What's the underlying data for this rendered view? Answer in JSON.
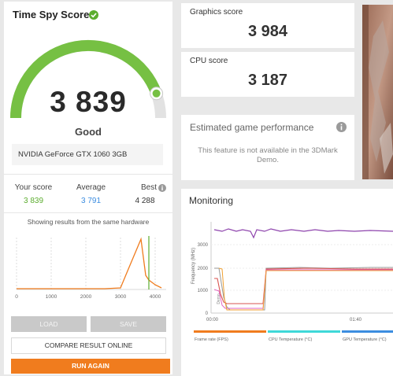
{
  "score_panel": {
    "title": "Time Spy Score",
    "score": "3 839",
    "rating": "Good",
    "gpu": "NVIDIA GeForce GTX 1060 3GB",
    "your_score_label": "Your score",
    "your_score": "3 839",
    "average_label": "Average",
    "average": "3 791",
    "best_label": "Best",
    "best": "4 288",
    "hardware_note": "Showing results from the same hardware",
    "histogram_ticks": [
      "0",
      "1000",
      "2000",
      "3000",
      "4000"
    ],
    "gauge_fraction": 0.89,
    "colors": {
      "gauge": "#76c043",
      "accent": "#f07c1e",
      "your": "#5cad2f",
      "avg": "#3c8de0"
    }
  },
  "buttons": {
    "load": "LOAD",
    "save": "SAVE",
    "compare": "COMPARE RESULT ONLINE",
    "run_again": "RUN AGAIN"
  },
  "graphics": {
    "label": "Graphics score",
    "value": "3 984"
  },
  "cpu": {
    "label": "CPU score",
    "value": "3 187"
  },
  "estimated": {
    "title": "Estimated game performance",
    "message": "This feature is not available in the 3DMark Demo."
  },
  "monitoring": {
    "title": "Monitoring",
    "y_label": "Frequency (MHz)",
    "y_ticks": [
      "0",
      "1000",
      "2000",
      "3000"
    ],
    "x_ticks": [
      "00:00",
      "01:40"
    ],
    "inner_label": "Demo",
    "legend": [
      {
        "label": "Frame rate (FPS)",
        "color": "#f07c1e"
      },
      {
        "label": "CPU Temperature (°C)",
        "color": "#3fd8d8"
      },
      {
        "label": "GPU Temperature (°C)",
        "color": "#3c8de0"
      }
    ]
  }
}
